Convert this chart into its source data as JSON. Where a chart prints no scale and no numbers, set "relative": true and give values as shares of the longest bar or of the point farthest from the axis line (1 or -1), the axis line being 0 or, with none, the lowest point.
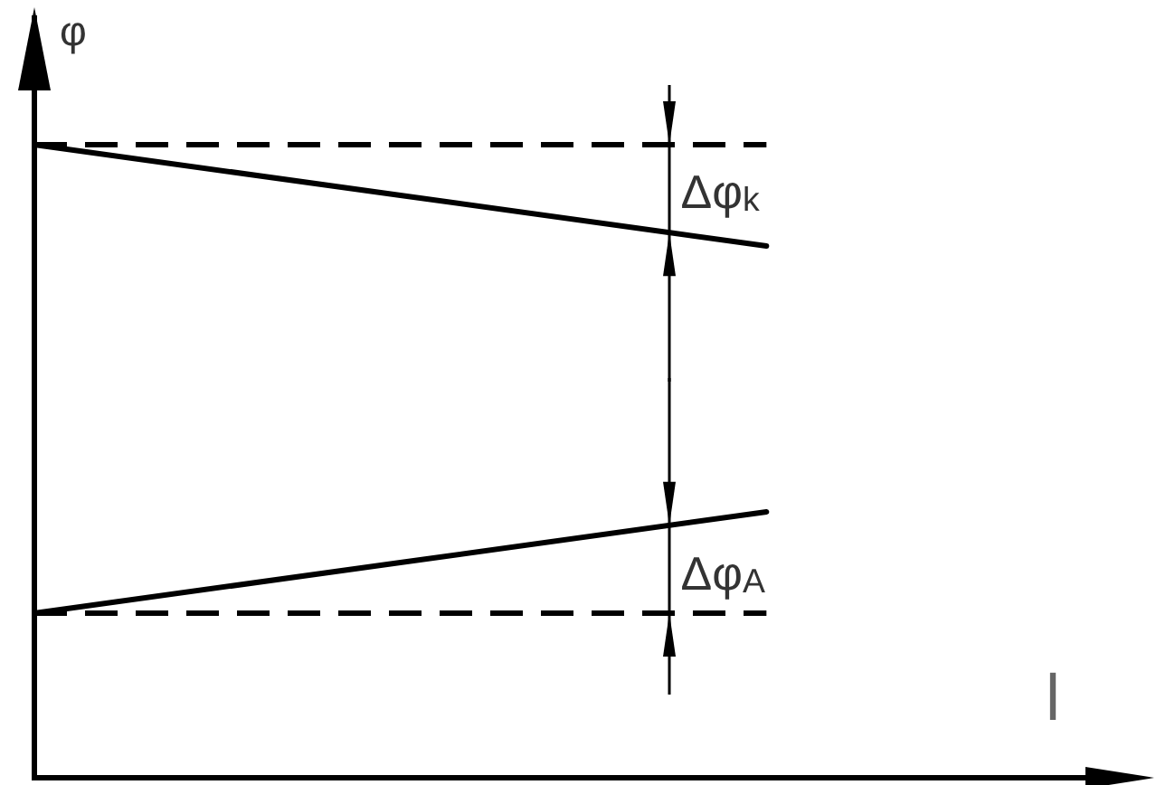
{
  "chart_data": {
    "type": "line",
    "relative": true,
    "xlabel": "l",
    "ylabel": "φ",
    "categories": [
      null,
      null,
      null,
      null
    ],
    "series": [
      {
        "color": "#000000",
        "values": [
          1,
          0.92,
          0.84,
          null
        ]
      },
      {
        "color": "#000000",
        "values": [
          0.26,
          0.34,
          0.42,
          null
        ]
      }
    ],
    "ref_lines": [
      {
        "axis": "y",
        "value": 1,
        "color": "#000000",
        "line_style": "dashed"
      },
      {
        "axis": "y",
        "value": 0.26,
        "color": "#000000",
        "line_style": "dashed"
      }
    ],
    "annotations": [
      "Δφ$_{k}$",
      "Δφ$_{A}$"
    ],
    "marker": "none",
    "line_style": "solid",
    "tick_labels": false
  }
}
